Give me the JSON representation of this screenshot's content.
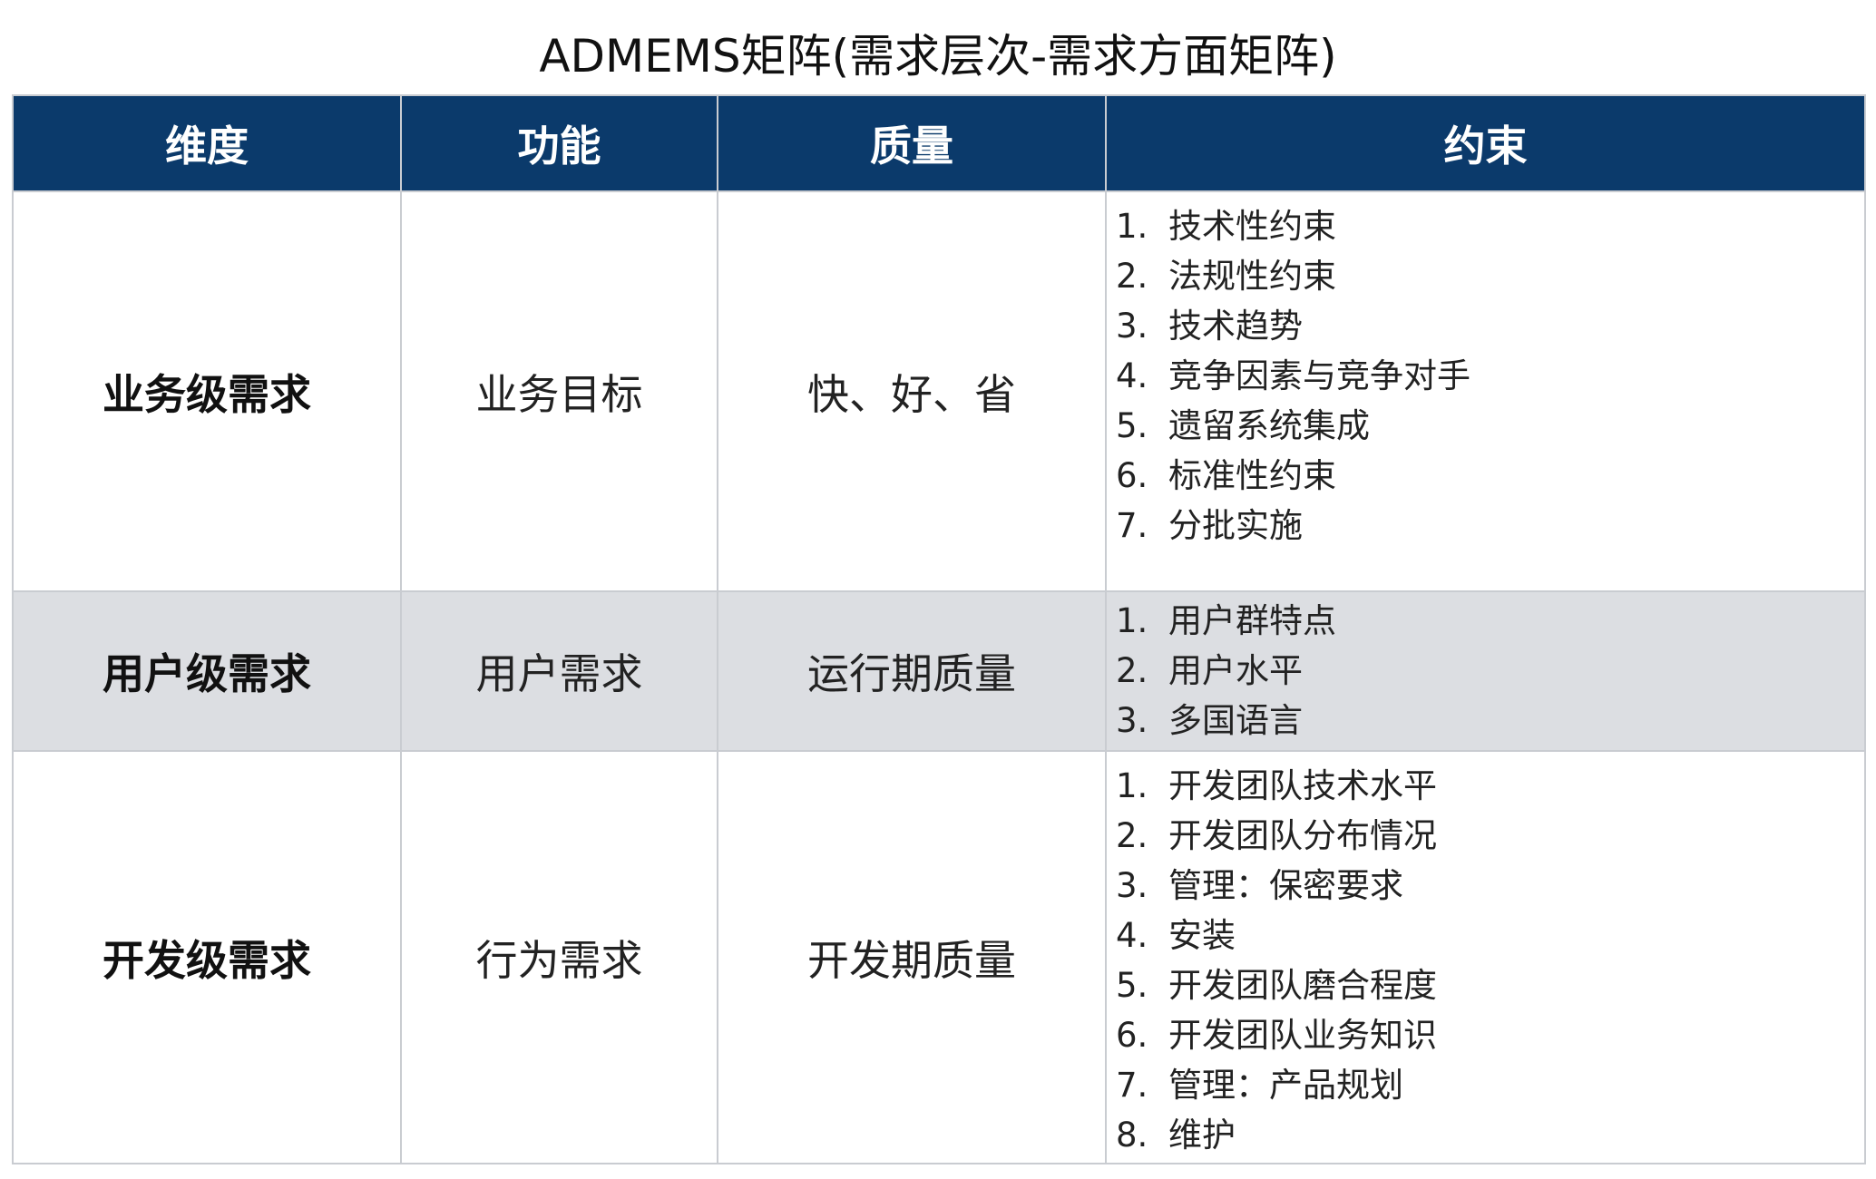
{
  "title": "ADMEMS矩阵(需求层次-需求方面矩阵)",
  "headers": [
    "维度",
    "功能",
    "质量",
    "约束"
  ],
  "rows": [
    {
      "dimension": "业务级需求",
      "function": "业务目标",
      "quality": "快、好、省",
      "constraints": [
        "技术性约束",
        "法规性约束",
        "技术趋势",
        "竞争因素与竞争对手",
        "遗留系统集成",
        "标准性约束",
        "分批实施"
      ]
    },
    {
      "dimension": "用户级需求",
      "function": "用户需求",
      "quality": "运行期质量",
      "constraints": [
        "用户群特点",
        "用户水平",
        "多国语言"
      ]
    },
    {
      "dimension": "开发级需求",
      "function": "行为需求",
      "quality": "开发期质量",
      "constraints": [
        "开发团队技术水平",
        "开发团队分布情况",
        "管理：保密要求",
        "安装",
        "开发团队磨合程度",
        "开发团队业务知识",
        "管理：产品规划",
        "维护"
      ]
    }
  ],
  "colors": {
    "header_bg": "#0b3a6b",
    "shaded_row": "#dcdee2"
  }
}
